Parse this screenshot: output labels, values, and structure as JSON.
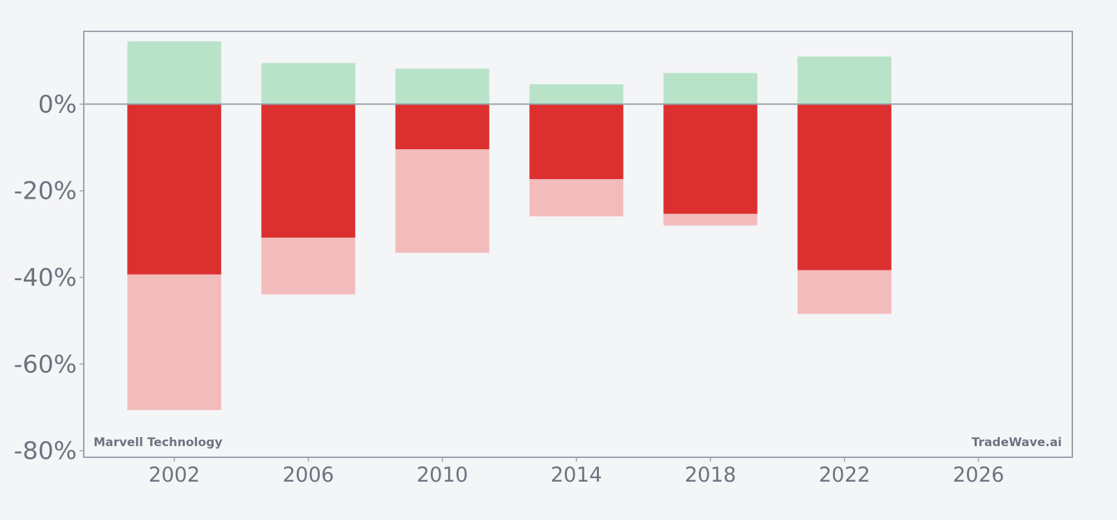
{
  "chart_data": {
    "type": "bar",
    "title": "",
    "xlabel": "",
    "ylabel": "",
    "x": [
      2002,
      2006,
      2010,
      2014,
      2018,
      2022
    ],
    "series": [
      {
        "values": [
          14.5,
          9.5,
          8.2,
          4.6,
          7.2,
          11.0
        ]
      },
      {
        "values": [
          -39.3,
          -30.8,
          -10.4,
          -17.3,
          -25.3,
          -38.3
        ]
      },
      {
        "values": [
          -70.6,
          -43.9,
          -34.3,
          -25.9,
          -28.0,
          -48.4
        ]
      }
    ],
    "colors": {
      "gain": "#b8e3c9",
      "decline": "#dc3030",
      "max_drawdown": "#f3bcbc",
      "axis": "#9a9eaa",
      "text": "#6e7380",
      "background": "#f4f5f7"
    },
    "xlim": [
      1999.3,
      2028.8
    ],
    "ylim": [
      -81.5,
      16.8
    ],
    "x_ticks": [
      2002,
      2006,
      2010,
      2014,
      2018,
      2022,
      2026
    ],
    "x_tick_labels": [
      "2002",
      "2006",
      "2010",
      "2014",
      "2018",
      "2022",
      "2026"
    ],
    "y_ticks": [
      0,
      -20,
      -40,
      -60,
      -80
    ],
    "y_tick_labels": [
      "0%",
      "-20%",
      "-40%",
      "-60%",
      "-80%"
    ],
    "grid": false,
    "bar_width_years": 2.8
  },
  "watermarks": {
    "left": "Marvell Technology",
    "right": "TradeWave.ai"
  }
}
